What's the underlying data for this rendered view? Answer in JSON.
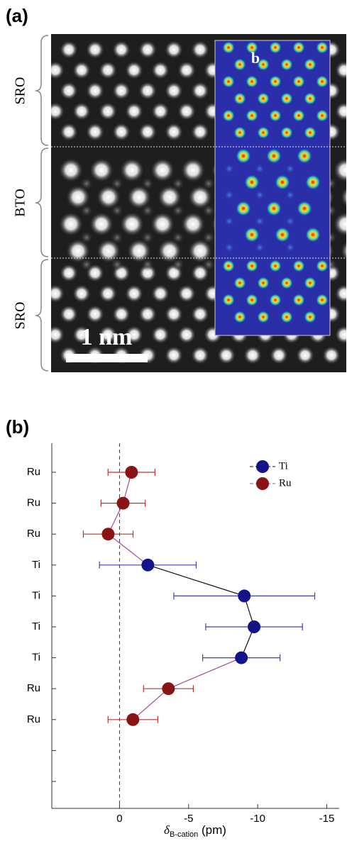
{
  "image": {
    "panel_label": "(a)",
    "layers": [
      "SRO",
      "BTO",
      "SRO"
    ],
    "scale_bar": "1 nm",
    "inset_label": "b"
  },
  "chart_data": {
    "type": "errorbar",
    "panel_label": "(b)",
    "categories": [
      "Ru",
      "Ru",
      "Ru",
      "Ti",
      "Ti",
      "Ti",
      "Ti",
      "Ru",
      "Ru",
      null,
      null
    ],
    "series": [
      {
        "name": "Ti",
        "color": "#14148a",
        "line_color": "#111111",
        "error_color": "#4040a8",
        "values": [
          null,
          null,
          null,
          -2.05,
          -9.03,
          -9.74,
          -8.82,
          null,
          null,
          null,
          null
        ],
        "errors": [
          null,
          null,
          null,
          3.5,
          5.1,
          3.5,
          2.8,
          null,
          null,
          null,
          null
        ]
      },
      {
        "name": "Ru",
        "color": "#8a1414",
        "line_color": "#a04898",
        "error_color": "#c03030",
        "values": [
          -0.87,
          -0.26,
          0.82,
          null,
          null,
          null,
          null,
          -3.54,
          -0.97,
          null,
          null
        ],
        "errors": [
          1.7,
          1.6,
          1.8,
          null,
          null,
          null,
          null,
          1.8,
          1.8,
          null,
          null
        ]
      }
    ],
    "xlim": [
      4.9,
      -15.9
    ],
    "xticks": [
      0,
      -5,
      -10,
      -15
    ],
    "reference_line": 0,
    "x_label": {
      "symbol": "δ",
      "subscript": "B-cation",
      "unit": "(pm)"
    },
    "legend": "top-right"
  }
}
